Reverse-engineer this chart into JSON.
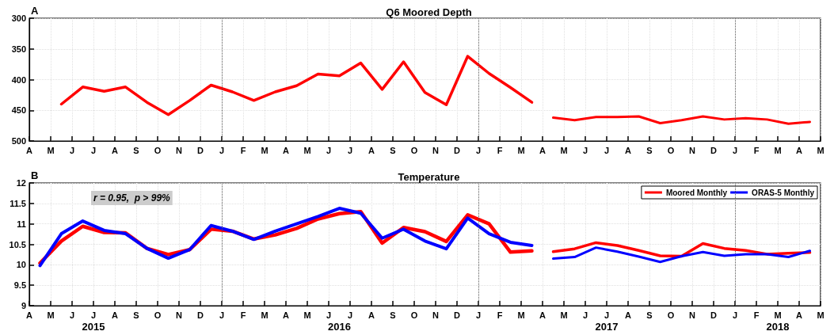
{
  "chart_data": [
    {
      "type": "line",
      "title": "Q6 Moored Depth",
      "annotations": [
        "A"
      ],
      "categories": [
        "A",
        null,
        "M",
        null,
        "J",
        null,
        "J",
        null,
        "A",
        null,
        "S",
        null,
        "O",
        null,
        "N",
        null,
        "D",
        null,
        "J",
        null,
        "F",
        null,
        "M",
        null,
        "A",
        null,
        "M",
        null,
        "J",
        null,
        "J",
        null,
        "A",
        null,
        "S",
        null,
        "O",
        null,
        "N",
        null,
        "D",
        null,
        "J",
        null,
        "F",
        null,
        "M",
        null,
        "A",
        null,
        "M",
        null,
        "J",
        null,
        "J",
        null,
        "A",
        null,
        "S",
        null,
        "O",
        null,
        "N",
        null,
        "D",
        null,
        "J",
        null,
        "F",
        null,
        "M",
        null,
        "A",
        null,
        "M"
      ],
      "series": [
        {
          "color": "#ff0000",
          "values": [
            null,
            null,
            null,
            440,
            null,
            412,
            null,
            419,
            null,
            412,
            null,
            437,
            null,
            457,
            null,
            434,
            null,
            409,
            null,
            420,
            null,
            434,
            null,
            420,
            null,
            410,
            null,
            391,
            null,
            394,
            null,
            373,
            null,
            416,
            null,
            371,
            null,
            421,
            null,
            441,
            null,
            362,
            null,
            390,
            null,
            413,
            null,
            437,
            null,
            null,
            null,
            null,
            null,
            null,
            null,
            null,
            null,
            null,
            null,
            null,
            null,
            null,
            null,
            null,
            null,
            null,
            null,
            null,
            null,
            null,
            null,
            null,
            null,
            null,
            null
          ]
        },
        {
          "color": "#ff0000",
          "values": [
            null,
            null,
            null,
            null,
            null,
            null,
            null,
            null,
            null,
            null,
            null,
            null,
            null,
            null,
            null,
            null,
            null,
            null,
            null,
            null,
            null,
            null,
            null,
            null,
            null,
            null,
            null,
            null,
            null,
            null,
            null,
            null,
            null,
            null,
            null,
            null,
            null,
            null,
            null,
            null,
            null,
            null,
            null,
            null,
            null,
            null,
            null,
            null,
            null,
            462,
            null,
            466,
            null,
            461,
            null,
            461,
            null,
            460,
            null,
            471,
            null,
            466,
            null,
            460,
            null,
            465,
            null,
            463,
            null,
            465,
            null,
            472,
            null,
            469,
            null
          ]
        }
      ],
      "ylim": [
        500,
        300
      ],
      "yticks": [
        300,
        350,
        400,
        450,
        500
      ],
      "grid": true,
      "legend": false,
      "marker": "none"
    },
    {
      "type": "line",
      "title": "Temperature",
      "annotations": [
        "B",
        "r = 0.95,  p > 99%",
        "2015",
        "2016",
        "2017",
        "2018"
      ],
      "categories": [
        "A",
        null,
        "M",
        null,
        "J",
        null,
        "J",
        null,
        "A",
        null,
        "S",
        null,
        "O",
        null,
        "N",
        null,
        "D",
        null,
        "J",
        null,
        "F",
        null,
        "M",
        null,
        "A",
        null,
        "M",
        null,
        "J",
        null,
        "J",
        null,
        "A",
        null,
        "S",
        null,
        "O",
        null,
        "N",
        null,
        "D",
        null,
        "J",
        null,
        "F",
        null,
        "M",
        null,
        "A",
        null,
        "M",
        null,
        "J",
        null,
        "J",
        null,
        "A",
        null,
        "S",
        null,
        "O",
        null,
        "N",
        null,
        "D",
        null,
        "J",
        null,
        "F",
        null,
        "M",
        null,
        "A",
        null,
        "M"
      ],
      "series": [
        {
          "name": "Moored Monthly",
          "color": "#ff0000",
          "values": [
            null,
            10.04,
            null,
            10.58,
            null,
            10.94,
            null,
            10.79,
            null,
            10.78,
            null,
            10.4,
            null,
            10.25,
            null,
            10.37,
            null,
            10.87,
            null,
            10.82,
            null,
            10.63,
            null,
            10.73,
            null,
            10.89,
            null,
            11.12,
            null,
            11.25,
            null,
            11.3,
            null,
            10.53,
            null,
            10.91,
            null,
            10.81,
            null,
            10.57,
            null,
            11.22,
            null,
            11.0,
            null,
            10.31,
            null,
            10.34,
            null,
            null,
            null,
            null,
            null,
            null,
            null,
            null,
            null,
            null,
            null,
            null,
            null,
            null,
            null,
            null,
            null,
            null,
            null,
            null,
            null,
            null,
            null,
            null,
            null,
            null,
            null
          ]
        },
        {
          "name": "ORAS-5 Monthly",
          "color": "#0000ff",
          "values": [
            null,
            9.98,
            null,
            10.76,
            null,
            11.07,
            null,
            10.84,
            null,
            10.76,
            null,
            10.4,
            null,
            10.16,
            null,
            10.37,
            null,
            10.96,
            null,
            10.82,
            null,
            10.62,
            null,
            10.82,
            null,
            11.0,
            null,
            11.18,
            null,
            11.38,
            null,
            11.26,
            null,
            10.65,
            null,
            10.87,
            null,
            10.58,
            null,
            10.39,
            null,
            11.14,
            null,
            10.76,
            null,
            10.55,
            null,
            10.47,
            null,
            null,
            null,
            null,
            null,
            null,
            null,
            null,
            null,
            null,
            null,
            null,
            null,
            null,
            null,
            null,
            null,
            null,
            null,
            null,
            null,
            null,
            null,
            null,
            null,
            null,
            null
          ]
        },
        {
          "color": "#ff0000",
          "values": [
            null,
            null,
            null,
            null,
            null,
            null,
            null,
            null,
            null,
            null,
            null,
            null,
            null,
            null,
            null,
            null,
            null,
            null,
            null,
            null,
            null,
            null,
            null,
            null,
            null,
            null,
            null,
            null,
            null,
            null,
            null,
            null,
            null,
            null,
            null,
            null,
            null,
            null,
            null,
            null,
            null,
            null,
            null,
            null,
            null,
            null,
            null,
            null,
            null,
            10.32,
            null,
            10.39,
            null,
            10.54,
            null,
            10.47,
            null,
            10.35,
            null,
            10.22,
            null,
            10.21,
            null,
            10.52,
            null,
            10.4,
            null,
            10.35,
            null,
            10.26,
            null,
            10.28,
            null,
            10.3,
            null
          ]
        },
        {
          "color": "#0000ff",
          "values": [
            null,
            null,
            null,
            null,
            null,
            null,
            null,
            null,
            null,
            null,
            null,
            null,
            null,
            null,
            null,
            null,
            null,
            null,
            null,
            null,
            null,
            null,
            null,
            null,
            null,
            null,
            null,
            null,
            null,
            null,
            null,
            null,
            null,
            null,
            null,
            null,
            null,
            null,
            null,
            null,
            null,
            null,
            null,
            null,
            null,
            null,
            null,
            null,
            null,
            10.15,
            null,
            10.19,
            null,
            10.42,
            null,
            10.32,
            null,
            10.2,
            null,
            10.07,
            null,
            10.21,
            null,
            10.31,
            null,
            10.22,
            null,
            10.26,
            null,
            10.26,
            null,
            10.19,
            null,
            10.34,
            null
          ]
        }
      ],
      "ylim": [
        9,
        12
      ],
      "yticks": [
        9,
        9.5,
        10,
        10.5,
        11,
        11.5,
        12
      ],
      "grid": true,
      "legend": "top right",
      "marker": "none"
    }
  ]
}
